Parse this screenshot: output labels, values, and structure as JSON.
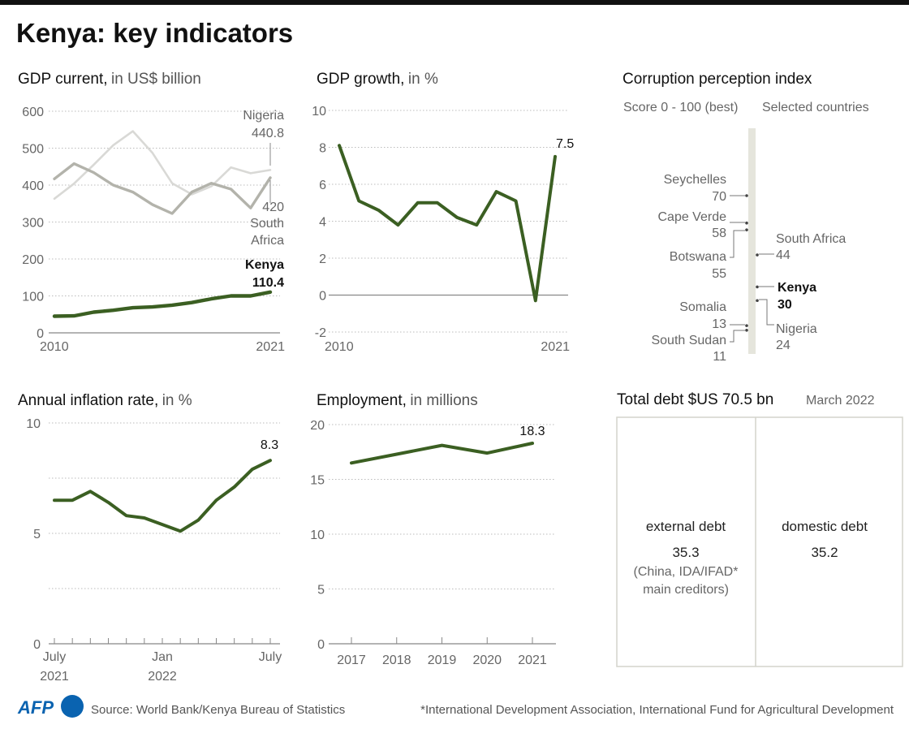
{
  "title": "Kenya: key indicators",
  "colors": {
    "green": "#3b5f22",
    "nigeria": "#d9d9d6",
    "south_africa": "#b3b3ab",
    "cpi_bar": "#e5e5dc"
  },
  "chart_data": [
    {
      "id": "gdp",
      "type": "line",
      "title": "GDP current,",
      "title_unit": "in US$ billion",
      "x": [
        2010,
        2011,
        2012,
        2013,
        2014,
        2015,
        2016,
        2017,
        2018,
        2019,
        2020,
        2021
      ],
      "x_tick_labels": [
        "2010",
        "2021"
      ],
      "ylim": [
        0,
        600
      ],
      "y_ticks": [
        0,
        100,
        200,
        300,
        400,
        500,
        600
      ],
      "grid": true,
      "series": [
        {
          "name": "Nigeria",
          "end_label": "440.8",
          "color": "#d9d9d6",
          "values": [
            363,
            404,
            455,
            508,
            546,
            487,
            405,
            375,
            397,
            448,
            432,
            440.8
          ]
        },
        {
          "name": "South Africa",
          "name_lines": [
            "South",
            "Africa"
          ],
          "end_label": "420",
          "color": "#b3b3ab",
          "values": [
            417,
            458,
            434,
            400,
            381,
            347,
            323,
            381,
            405,
            389,
            338,
            420
          ]
        },
        {
          "name": "Kenya",
          "end_label": "110.4",
          "color": "#3b5f22",
          "values": [
            45,
            46,
            56,
            61,
            68,
            70,
            75,
            82,
            92,
            100,
            100,
            110.4
          ]
        }
      ]
    },
    {
      "id": "growth",
      "type": "line",
      "title": "GDP growth,",
      "title_unit": "in %",
      "x": [
        2010,
        2011,
        2012,
        2013,
        2014,
        2015,
        2016,
        2017,
        2018,
        2019,
        2020,
        2021
      ],
      "x_tick_labels": [
        "2010",
        "2021"
      ],
      "ylim": [
        -2,
        10
      ],
      "y_ticks": [
        -2,
        0,
        2,
        4,
        6,
        8,
        10
      ],
      "grid": true,
      "series": [
        {
          "end_label": "7.5",
          "color": "#3b5f22",
          "values": [
            8.1,
            5.1,
            4.6,
            3.8,
            5.0,
            5.0,
            4.2,
            3.8,
            5.6,
            5.1,
            -0.3,
            7.5
          ]
        }
      ]
    },
    {
      "id": "inflation",
      "type": "line",
      "title": "Annual inflation rate,",
      "title_unit": "in %",
      "x": [
        "2021-07",
        "2021-08",
        "2021-09",
        "2021-10",
        "2021-11",
        "2021-12",
        "2022-01",
        "2022-02",
        "2022-03",
        "2022-04",
        "2022-05",
        "2022-06",
        "2022-07"
      ],
      "x_tick_labels": [
        [
          "July",
          "2021"
        ],
        [
          "Jan",
          "2022"
        ],
        [
          "July"
        ]
      ],
      "ylim": [
        0,
        10
      ],
      "y_ticks": [
        0,
        5,
        10
      ],
      "grid": true,
      "series": [
        {
          "end_label": "8.3",
          "color": "#3b5f22",
          "values": [
            6.5,
            6.5,
            6.9,
            6.4,
            5.8,
            5.7,
            5.4,
            5.1,
            5.6,
            6.5,
            7.1,
            7.9,
            8.3
          ]
        }
      ]
    },
    {
      "id": "employment",
      "type": "line",
      "title": "Employment,",
      "title_unit": "in millions",
      "x": [
        2017,
        2018,
        2019,
        2020,
        2021
      ],
      "x_tick_labels": [
        "2017",
        "2018",
        "2019",
        "2020",
        "2021"
      ],
      "ylim": [
        0,
        20
      ],
      "y_ticks": [
        0,
        5,
        10,
        15,
        20
      ],
      "grid": true,
      "series": [
        {
          "end_label": "18.3",
          "color": "#3b5f22",
          "values": [
            16.5,
            17.3,
            18.1,
            17.4,
            18.3
          ]
        }
      ]
    },
    {
      "id": "cpi",
      "type": "scatter",
      "title": "Corruption perception index",
      "subtitle_left": "Score 0 - 100 (best)",
      "subtitle_right": "Selected countries",
      "points": [
        {
          "country": "Seychelles",
          "score": 70,
          "side": "left"
        },
        {
          "country": "Cape Verde",
          "score": 58,
          "side": "left"
        },
        {
          "country": "Botswana",
          "score": 55,
          "side": "left"
        },
        {
          "country": "South Africa",
          "score": 44,
          "side": "right"
        },
        {
          "country": "Kenya",
          "score": 30,
          "side": "right",
          "highlight": true
        },
        {
          "country": "Nigeria",
          "score": 24,
          "side": "right"
        },
        {
          "country": "Somalia",
          "score": 13,
          "side": "left"
        },
        {
          "country": "South Sudan",
          "score": 11,
          "side": "left"
        }
      ]
    },
    {
      "id": "debt",
      "type": "table",
      "title": "Total debt $US 70.5 bn",
      "date": "March 2022",
      "parts": [
        {
          "label": "external debt",
          "value": "35.3",
          "note_lines": [
            "(China, IDA/IFAD*",
            "main creditors)"
          ]
        },
        {
          "label": "domestic debt",
          "value": "35.2"
        }
      ]
    }
  ],
  "footer": {
    "logo": "AFP",
    "source": "Source: World Bank/Kenya Bureau of Statistics",
    "footnote": "*International Development Association, International Fund for Agricultural Development"
  }
}
